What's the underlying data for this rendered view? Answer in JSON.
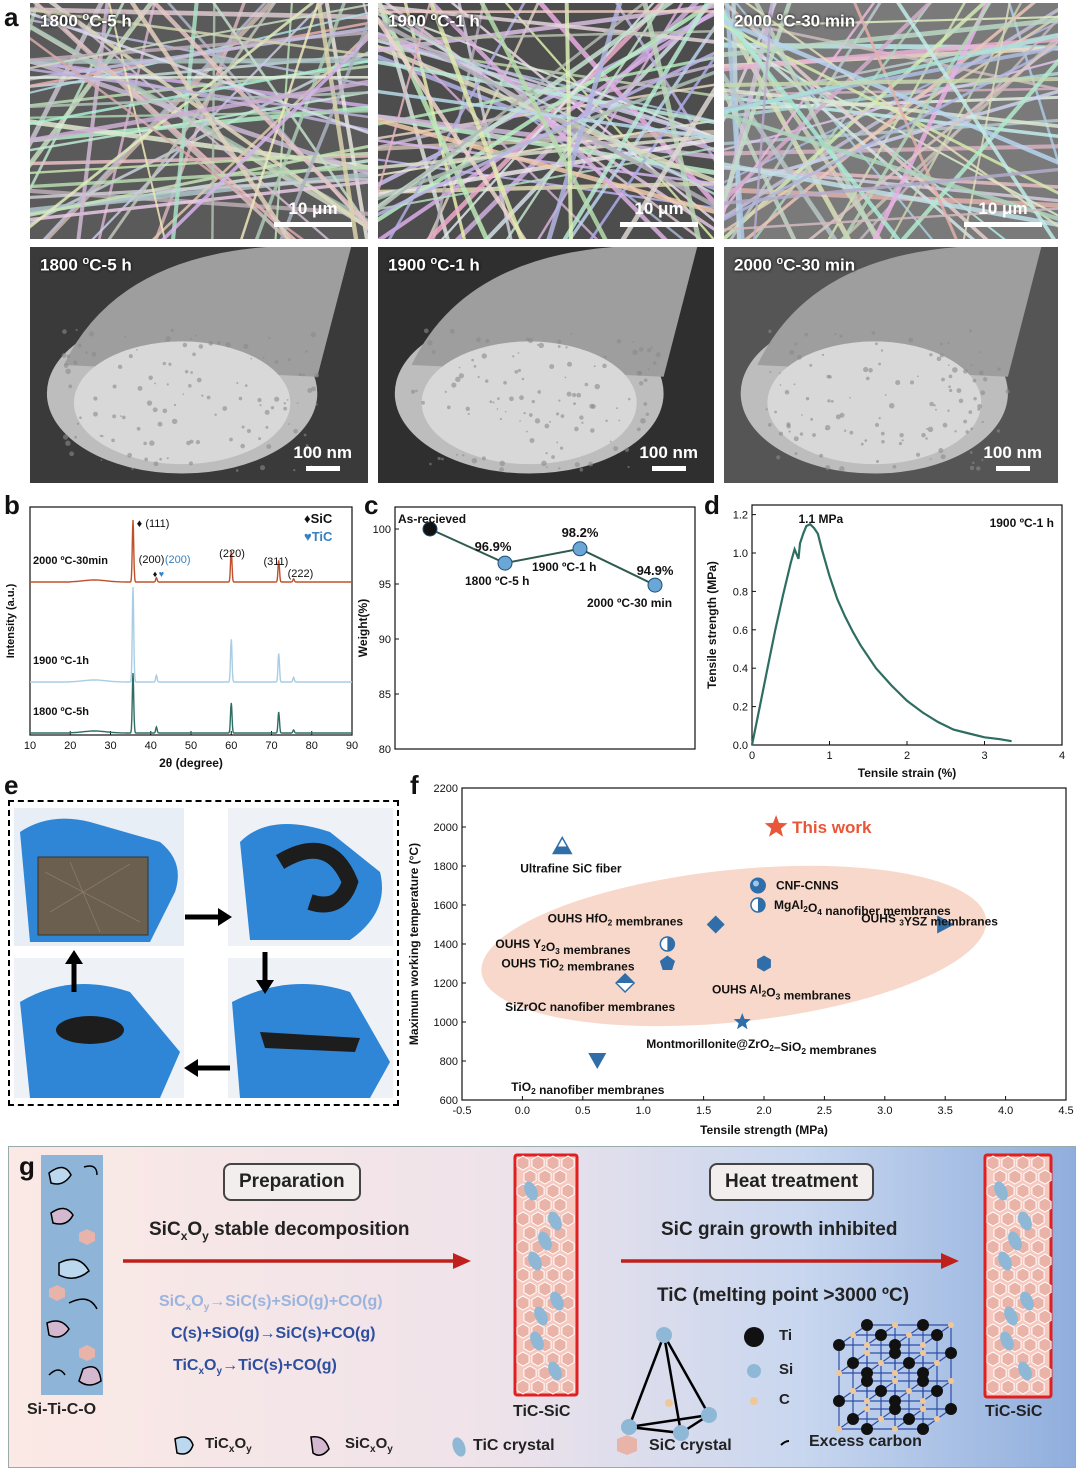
{
  "panel_labels": {
    "a": "a",
    "b": "b",
    "c": "c",
    "d": "d",
    "e": "e",
    "f": "f",
    "g": "g"
  },
  "sem_images": [
    {
      "label_html": "1800 <sup>o</sup>C-5 h",
      "scale": "10 μm",
      "kind": "fiber",
      "bg": "#5a5a5a"
    },
    {
      "label_html": "1900 <sup>o</sup>C-1 h",
      "scale": "10 μm",
      "kind": "fiber",
      "bg": "#4d4d4d"
    },
    {
      "label_html": "2000 <sup>o</sup>C-30 min",
      "scale": "10 μm",
      "kind": "fiber",
      "bg": "#7a7a7a"
    },
    {
      "label_html": "1800 <sup>o</sup>C-5 h",
      "scale": "100 nm",
      "kind": "cross",
      "bg": "#3a3a3a"
    },
    {
      "label_html": "1900 <sup>o</sup>C-1 h",
      "scale": "100 nm",
      "kind": "cross",
      "bg": "#2f2f2f"
    },
    {
      "label_html": "2000 <sup>o</sup>C-30 min",
      "scale": "100 nm",
      "kind": "cross",
      "bg": "#555"
    }
  ],
  "chart_data": [
    {
      "id": "b",
      "type": "line",
      "xlabel": "2θ (degree)",
      "ylabel": "Intensity (a.u.)",
      "xlim": [
        10,
        90
      ],
      "xticks": [
        10,
        20,
        30,
        40,
        50,
        60,
        70,
        80,
        90
      ],
      "legend": [
        {
          "symbol": "♦",
          "name": "SiC",
          "color": "#111"
        },
        {
          "symbol": "♥",
          "name": "TiC",
          "color": "#3a7fc0"
        }
      ],
      "series": [
        {
          "name": "2000 oC-30min",
          "color": "#c0502a",
          "peaks": [
            [
              35.6,
              1.0
            ],
            [
              41.4,
              0.07
            ],
            [
              60,
              0.5
            ],
            [
              71.8,
              0.35
            ],
            [
              75.5,
              0.05
            ]
          ]
        },
        {
          "name": "1900 oC-1h",
          "color": "#a9cde4",
          "peaks": [
            [
              35.6,
              1.0
            ],
            [
              41.4,
              0.07
            ],
            [
              60,
              0.45
            ],
            [
              71.8,
              0.3
            ],
            [
              75.5,
              0.05
            ]
          ]
        },
        {
          "name": "1800 oC-5h",
          "color": "#2e6e62",
          "peaks": [
            [
              35.6,
              1.0
            ],
            [
              41.4,
              0.1
            ],
            [
              60,
              0.5
            ],
            [
              71.8,
              0.35
            ],
            [
              75.5,
              0.05
            ]
          ]
        }
      ],
      "annotations": [
        "(111)",
        "(200)",
        "(200)",
        "(220)",
        "(311)",
        "(222)"
      ]
    },
    {
      "id": "c",
      "type": "line",
      "ylabel": "Weight(%)",
      "ylim": [
        80,
        102
      ],
      "yticks": [
        80,
        85,
        90,
        95,
        100
      ],
      "points": [
        {
          "x": 1,
          "y": 100,
          "label": "As-recieved",
          "value": ""
        },
        {
          "x": 2,
          "y": 96.9,
          "label": "1800 oC-5 h",
          "value": "96.9%"
        },
        {
          "x": 3,
          "y": 98.2,
          "label": "1900 oC-1 h",
          "value": "98.2%"
        },
        {
          "x": 4,
          "y": 94.9,
          "label": "2000 oC-30 min",
          "value": "94.9%"
        }
      ]
    },
    {
      "id": "d",
      "type": "line",
      "xlabel": "Tensile strain (%)",
      "ylabel": "Tensile strength (MPa)",
      "xlim": [
        0,
        4
      ],
      "ylim": [
        0,
        1.25
      ],
      "xticks": [
        0,
        1,
        2,
        3,
        4
      ],
      "yticks": [
        0.0,
        0.2,
        0.4,
        0.6,
        0.8,
        1.0,
        1.2
      ],
      "annotation": "1.1 MPa",
      "condition": "1900 oC-1 h",
      "series": [
        {
          "x": [
            0,
            0.1,
            0.2,
            0.3,
            0.4,
            0.5,
            0.55,
            0.6,
            0.62,
            0.66,
            0.7,
            0.75,
            0.8,
            0.85,
            0.9,
            1.0,
            1.1,
            1.2,
            1.3,
            1.4,
            1.6,
            1.8,
            2.0,
            2.2,
            2.4,
            2.6,
            2.8,
            3.0,
            3.2,
            3.35
          ],
          "y": [
            0,
            0.2,
            0.4,
            0.6,
            0.78,
            0.95,
            1.02,
            0.97,
            1.05,
            1.1,
            1.14,
            1.15,
            1.13,
            1.1,
            1.02,
            0.88,
            0.76,
            0.67,
            0.59,
            0.52,
            0.4,
            0.31,
            0.23,
            0.17,
            0.12,
            0.08,
            0.06,
            0.04,
            0.03,
            0.02
          ]
        }
      ]
    },
    {
      "id": "f",
      "type": "scatter",
      "xlabel": "Tensile strength (MPa)",
      "ylabel": "Maximum working temperature (°C)",
      "xlim": [
        -0.5,
        4.5
      ],
      "ylim": [
        600,
        2200
      ],
      "xticks": [
        -0.5,
        0.0,
        0.5,
        1.0,
        1.5,
        2.0,
        2.5,
        3.0,
        3.5,
        4.0,
        4.5
      ],
      "yticks": [
        600,
        800,
        1000,
        1200,
        1400,
        1600,
        1800,
        2000,
        2200
      ],
      "points": [
        {
          "x": 2.1,
          "y": 2000,
          "marker": "star",
          "label": "This work",
          "color": "#e8573a"
        },
        {
          "x": 0.33,
          "y": 1900,
          "marker": "tri-up-half",
          "label": "Ultrafine SiC fiber"
        },
        {
          "x": 1.95,
          "y": 1700,
          "marker": "sphere",
          "label": "CNF-CNNS"
        },
        {
          "x": 1.95,
          "y": 1600,
          "marker": "circle-half",
          "label": "MgAl2O4 nanofiber membranes"
        },
        {
          "x": 1.6,
          "y": 1500,
          "marker": "diamond",
          "label": "OUHS HfO2 membranes"
        },
        {
          "x": 3.5,
          "y": 1500,
          "marker": "tri-right",
          "label": "OUHS 3YSZ membranes"
        },
        {
          "x": 1.2,
          "y": 1400,
          "marker": "circle-half-r",
          "label": "OUHS Y2O3 membranes"
        },
        {
          "x": 1.2,
          "y": 1300,
          "marker": "pentagon",
          "label": "OUHS TiO2 membranes"
        },
        {
          "x": 2.0,
          "y": 1300,
          "marker": "hexagon",
          "label": "OUHS Al2O3 membranes"
        },
        {
          "x": 0.85,
          "y": 1200,
          "marker": "diamond-half",
          "label": "SiZrOC nanofiber membranes"
        },
        {
          "x": 1.82,
          "y": 1000,
          "marker": "star",
          "label": "Montmorillonite@ZrO2–SiO2 membranes",
          "color": "#2f6ea8"
        },
        {
          "x": 0.62,
          "y": 800,
          "marker": "tri-down",
          "label": "TiO2 nanofiber membranes"
        }
      ]
    }
  ],
  "panel_g": {
    "start_label": "Si-Ti-C-O",
    "mid_label": "TiC-SiC",
    "end_label": "TiC-SiC",
    "step1_box": "Preparation",
    "step1_title": "SiC",
    "step2_box": "Heat treatment",
    "step2_title": "SiC grain growth inhibited",
    "step2_sub": "TiC (melting point >3000 ºC)",
    "atoms": [
      "Ti",
      "Si",
      "C"
    ],
    "legend": [
      "TiCxOy",
      "SiCxOy",
      "TiC crystal",
      "SiC crystal",
      "Excess carbon"
    ]
  },
  "colors": {
    "accent_blue": "#2f6ea8",
    "accent_red": "#c0201c",
    "star": "#e8573a",
    "dxy": "#2e6e62"
  }
}
